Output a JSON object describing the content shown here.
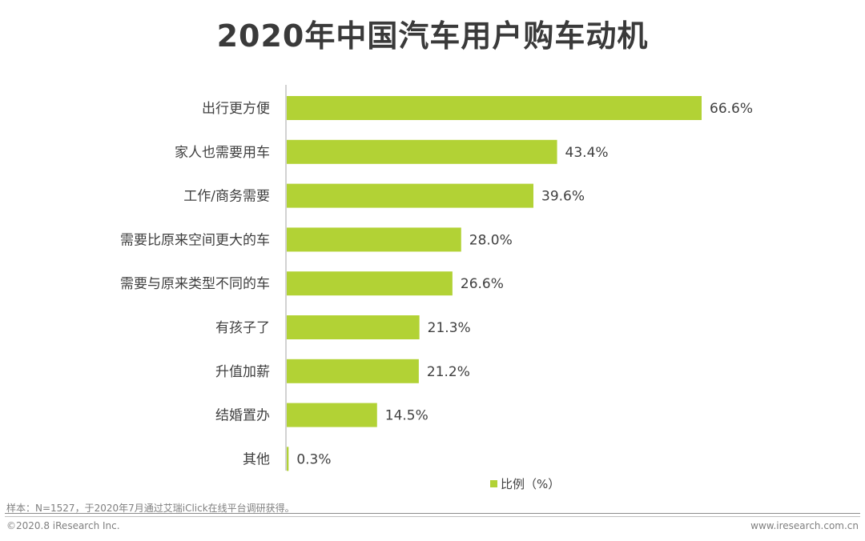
{
  "colors": {
    "bar": "#b2d235",
    "axis": "#a6a6a6",
    "text": "#404040"
  },
  "legend": {
    "label": "比例（%）"
  },
  "footer": {
    "note": "样本：N=1527，于2020年7月通过艾瑞iClick在线平台调研获得。",
    "copyright": "©2020.8 iResearch Inc.",
    "site": "www.iresearch.com.cn"
  },
  "chart_data": {
    "type": "bar",
    "orientation": "horizontal",
    "title": "2020年中国汽车用户购车动机",
    "categories": [
      "出行更方便",
      "家人也需要用车",
      "工作/商务需要",
      "需要比原来空间更大的车",
      "需要与原来类型不同的车",
      "有孩子了",
      "升值加薪",
      "结婚置办",
      "其他"
    ],
    "series": [
      {
        "name": "比例（%）",
        "values": [
          66.6,
          43.4,
          39.6,
          28.0,
          26.6,
          21.3,
          21.2,
          14.5,
          0.3
        ]
      }
    ],
    "value_labels": [
      "66.6%",
      "43.4%",
      "39.6%",
      "28.0%",
      "26.6%",
      "21.3%",
      "21.2%",
      "14.5%",
      "0.3%"
    ],
    "xlim": [
      0,
      100
    ],
    "grid": false,
    "legend_position": "bottom-center"
  }
}
